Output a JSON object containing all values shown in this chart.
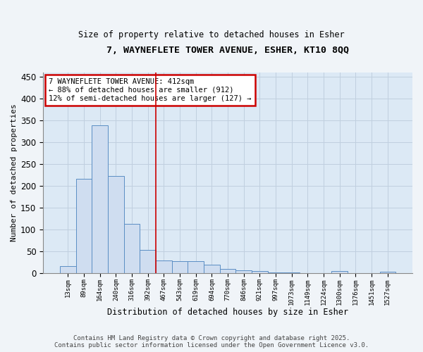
{
  "title_line1": "7, WAYNEFLETE TOWER AVENUE, ESHER, KT10 8QQ",
  "title_line2": "Size of property relative to detached houses in Esher",
  "xlabel": "Distribution of detached houses by size in Esher",
  "ylabel": "Number of detached properties",
  "bar_color": "#cfddf0",
  "bar_edge_color": "#5b8ec4",
  "grid_color": "#c0cfdf",
  "background_color": "#dce9f5",
  "vline_color": "#cc0000",
  "vline_x_idx": 5.5,
  "annotation_text": "7 WAYNEFLETE TOWER AVENUE: 412sqm\n← 88% of detached houses are smaller (912)\n12% of semi-detached houses are larger (127) →",
  "annotation_box_facecolor": "#ffffff",
  "annotation_box_edgecolor": "#cc0000",
  "categories": [
    "13sqm",
    "89sqm",
    "164sqm",
    "240sqm",
    "316sqm",
    "392sqm",
    "467sqm",
    "543sqm",
    "619sqm",
    "694sqm",
    "770sqm",
    "846sqm",
    "921sqm",
    "997sqm",
    "1073sqm",
    "1149sqm",
    "1224sqm",
    "1300sqm",
    "1376sqm",
    "1451sqm",
    "1527sqm"
  ],
  "values": [
    15,
    216,
    338,
    222,
    113,
    53,
    28,
    26,
    26,
    18,
    9,
    5,
    4,
    1,
    1,
    0,
    0,
    4,
    0,
    0,
    3
  ],
  "ylim": [
    0,
    460
  ],
  "yticks": [
    0,
    50,
    100,
    150,
    200,
    250,
    300,
    350,
    400,
    450
  ],
  "footer_line1": "Contains HM Land Registry data © Crown copyright and database right 2025.",
  "footer_line2": "Contains public sector information licensed under the Open Government Licence v3.0."
}
